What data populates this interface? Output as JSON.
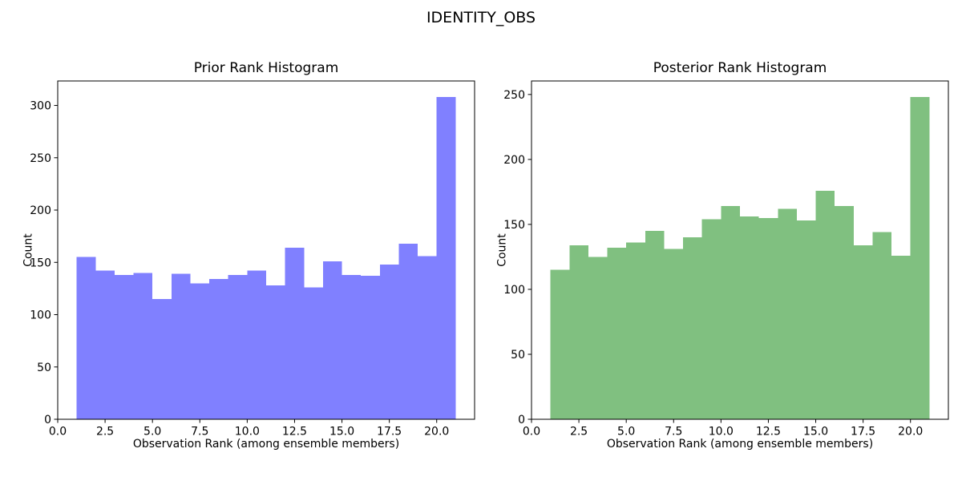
{
  "suptitle": "IDENTITY_OBS",
  "chart_data": [
    {
      "type": "bar",
      "variant": "histogram",
      "title": "Prior Rank Histogram",
      "xlabel": "Observation Rank (among ensemble members)",
      "ylabel": "Count",
      "color": "#8080ff",
      "bin_start": 1,
      "bin_width": 1,
      "counts": [
        155,
        142,
        138,
        140,
        115,
        139,
        130,
        134,
        138,
        142,
        128,
        164,
        126,
        151,
        138,
        137,
        148,
        168,
        156,
        308
      ],
      "xlim": [
        0,
        22
      ],
      "ylim": [
        0,
        323.4
      ],
      "xticks": [
        0,
        2.5,
        5,
        7.5,
        10,
        12.5,
        15,
        17.5,
        20
      ],
      "xtick_labels": [
        "0.0",
        "2.5",
        "5.0",
        "7.5",
        "10.0",
        "12.5",
        "15.0",
        "17.5",
        "20.0"
      ],
      "yticks": [
        0,
        50,
        100,
        150,
        200,
        250,
        300
      ],
      "ytick_labels": [
        "0",
        "50",
        "100",
        "150",
        "200",
        "250",
        "300"
      ],
      "grid": false
    },
    {
      "type": "bar",
      "variant": "histogram",
      "title": "Posterior Rank Histogram",
      "xlabel": "Observation Rank (among ensemble members)",
      "ylabel": "Count",
      "color": "#80c080",
      "bin_start": 1,
      "bin_width": 1,
      "counts": [
        115,
        134,
        125,
        132,
        136,
        145,
        131,
        140,
        154,
        164,
        156,
        155,
        162,
        153,
        176,
        164,
        134,
        144,
        126,
        248
      ],
      "xlim": [
        0,
        22
      ],
      "ylim": [
        0,
        260.4
      ],
      "xticks": [
        0,
        2.5,
        5,
        7.5,
        10,
        12.5,
        15,
        17.5,
        20
      ],
      "xtick_labels": [
        "0.0",
        "2.5",
        "5.0",
        "7.5",
        "10.0",
        "12.5",
        "15.0",
        "17.5",
        "20.0"
      ],
      "yticks": [
        0,
        50,
        100,
        150,
        200,
        250
      ],
      "ytick_labels": [
        "0",
        "50",
        "100",
        "150",
        "200",
        "250"
      ],
      "grid": false
    }
  ]
}
